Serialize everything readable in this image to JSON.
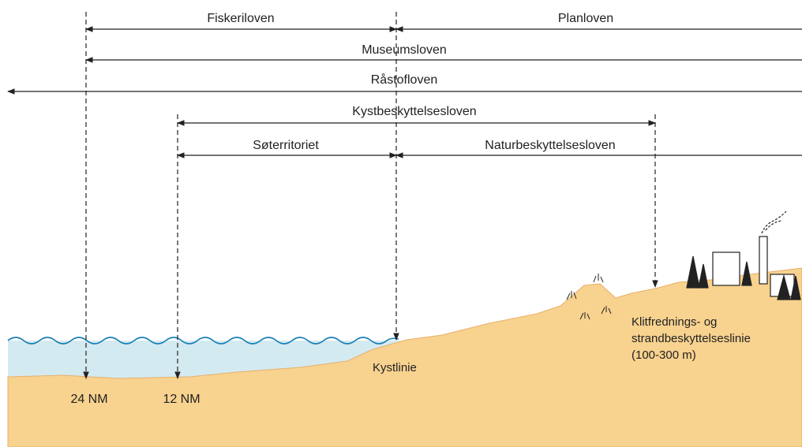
{
  "laws": [
    {
      "label": "Fiskeriloven"
    },
    {
      "label": "Planloven"
    },
    {
      "label": "Museumsloven"
    },
    {
      "label": "Råstofloven"
    },
    {
      "label": "Kystbeskyttelsesloven"
    },
    {
      "label": "Søterritoriet"
    },
    {
      "label": "Naturbeskyttelsesloven"
    }
  ],
  "markers": [
    {
      "label": "24 NM"
    },
    {
      "label": "12 NM"
    }
  ],
  "coastline": {
    "label": "Kystlinie"
  },
  "dune_line": {
    "lines": [
      "Klitfrednings- og",
      "strandbeskyttelseslinie",
      "(100-300 m)"
    ]
  }
}
